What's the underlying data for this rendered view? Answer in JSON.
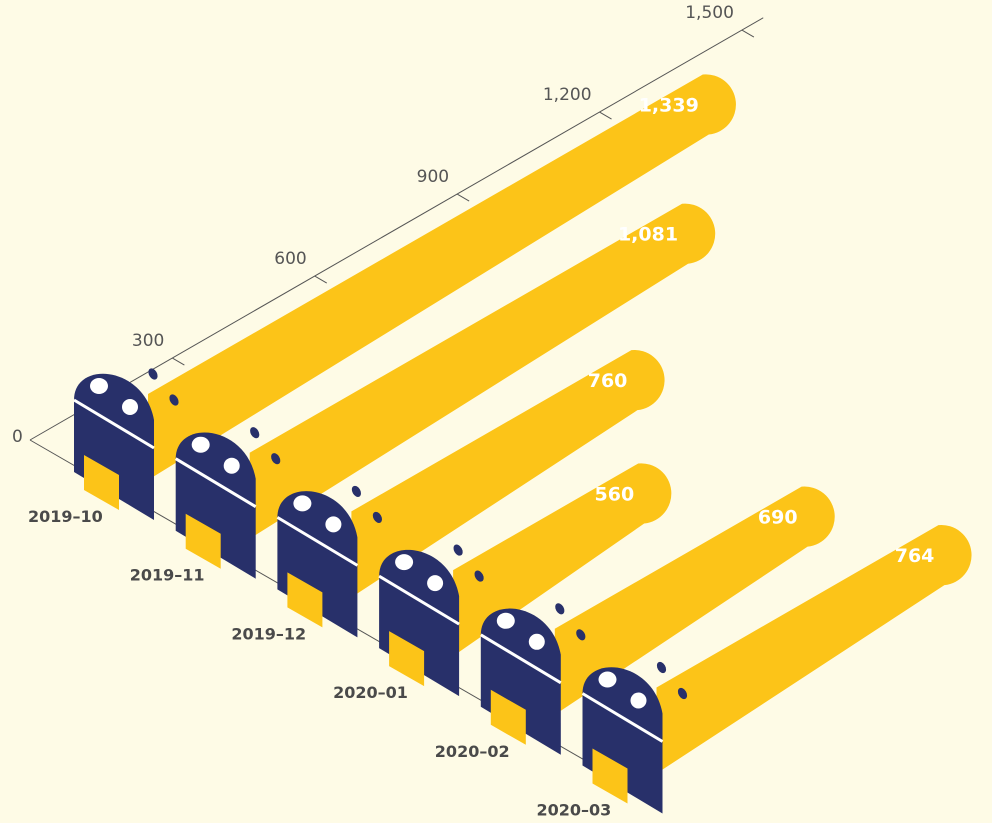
{
  "chart_data": {
    "type": "bar",
    "categories": [
      "2019–10",
      "2019–11",
      "2019–12",
      "2020–01",
      "2020–02",
      "2020–03"
    ],
    "values": [
      1339,
      1081,
      760,
      560,
      690,
      764
    ],
    "value_labels": [
      "1,339",
      "1,081",
      "760",
      "560",
      "690",
      "764"
    ],
    "axis_ticks": [
      0,
      300,
      600,
      900,
      1200,
      1500
    ],
    "axis_tick_labels": [
      "0",
      "300",
      "600",
      "900",
      "1,200",
      "1,500"
    ],
    "ylim": [
      0,
      1500
    ],
    "title": "",
    "xlabel": "",
    "ylabel": "",
    "grid": false,
    "colors": {
      "bar": "#fcc418",
      "figure": "#28306a",
      "background": "#fefbe6",
      "axis": "#555555"
    }
  }
}
